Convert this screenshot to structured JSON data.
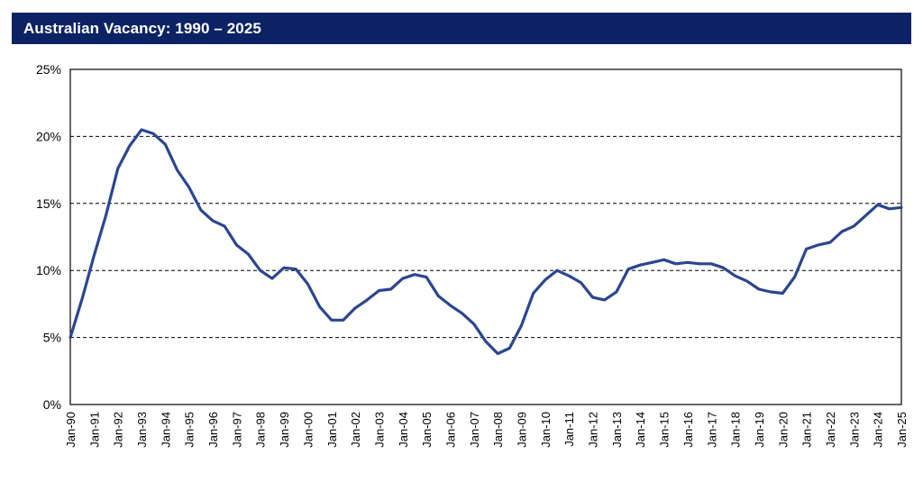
{
  "header": {
    "title": "Australian Vacancy: 1990 – 2025"
  },
  "colors": {
    "title_bar": "#0b2265",
    "line": "#2b4690",
    "grid": "#000000"
  },
  "chart_data": {
    "type": "line",
    "title": "Australian Vacancy: 1990 – 2025",
    "xlabel": "",
    "ylabel": "",
    "ylim": [
      0,
      25
    ],
    "yticks": [
      "0%",
      "5%",
      "10%",
      "15%",
      "20%",
      "25%"
    ],
    "ytick_values": [
      0,
      5,
      10,
      15,
      20,
      25
    ],
    "grid": "dashed horizontal",
    "legend": "none",
    "xticks": [
      "Jan-90",
      "Jan-91",
      "Jan-92",
      "Jan-93",
      "Jan-94",
      "Jan-95",
      "Jan-96",
      "Jan-97",
      "Jan-98",
      "Jan-99",
      "Jan-00",
      "Jan-01",
      "Jan-02",
      "Jan-03",
      "Jan-04",
      "Jan-05",
      "Jan-06",
      "Jan-07",
      "Jan-08",
      "Jan-09",
      "Jan-10",
      "Jan-11",
      "Jan-12",
      "Jan-13",
      "Jan-14",
      "Jan-15",
      "Jan-16",
      "Jan-17",
      "Jan-18",
      "Jan-19",
      "Jan-20",
      "Jan-21",
      "Jan-22",
      "Jan-23",
      "Jan-24",
      "Jan-25"
    ],
    "xrange": [
      "1990-01",
      "2025-01"
    ],
    "series": [
      {
        "x": [
          "1990-01",
          "1990-07",
          "1991-01",
          "1991-07",
          "1992-01",
          "1992-07",
          "1993-01",
          "1993-07",
          "1994-01",
          "1994-07",
          "1995-01",
          "1995-07",
          "1996-01",
          "1996-07",
          "1997-01",
          "1997-07",
          "1998-01",
          "1998-07",
          "1999-01",
          "1999-07",
          "2000-01",
          "2000-07",
          "2001-01",
          "2001-07",
          "2002-01",
          "2002-07",
          "2003-01",
          "2003-07",
          "2004-01",
          "2004-07",
          "2005-01",
          "2005-07",
          "2006-01",
          "2006-07",
          "2007-01",
          "2007-07",
          "2008-01",
          "2008-07",
          "2009-01",
          "2009-07",
          "2010-01",
          "2010-07",
          "2011-01",
          "2011-07",
          "2012-01",
          "2012-07",
          "2013-01",
          "2013-07",
          "2014-01",
          "2014-07",
          "2015-01",
          "2015-07",
          "2016-01",
          "2016-07",
          "2017-01",
          "2017-07",
          "2018-01",
          "2018-07",
          "2019-01",
          "2019-07",
          "2020-01",
          "2020-07",
          "2021-01",
          "2021-07",
          "2022-01",
          "2022-07",
          "2023-01",
          "2023-07",
          "2024-01",
          "2024-07",
          "2025-01"
        ],
        "values": [
          5.0,
          7.9,
          11.1,
          14.1,
          17.6,
          19.3,
          20.5,
          20.2,
          19.4,
          17.5,
          16.2,
          14.5,
          13.7,
          13.3,
          11.9,
          11.2,
          10.0,
          9.4,
          10.2,
          10.1,
          9.0,
          7.3,
          6.3,
          6.3,
          7.2,
          7.8,
          8.5,
          8.6,
          9.4,
          9.7,
          9.5,
          8.1,
          7.4,
          6.8,
          6.0,
          4.7,
          3.8,
          4.2,
          5.9,
          8.3,
          9.3,
          10.0,
          9.6,
          9.1,
          8.0,
          7.8,
          8.4,
          10.1,
          10.4,
          10.6,
          10.8,
          10.5,
          10.6,
          10.5,
          10.5,
          10.2,
          9.6,
          9.2,
          8.6,
          8.4,
          8.3,
          9.5,
          11.6,
          11.9,
          12.1,
          12.9,
          13.3,
          14.1,
          14.9,
          14.6,
          14.7
        ]
      }
    ]
  }
}
